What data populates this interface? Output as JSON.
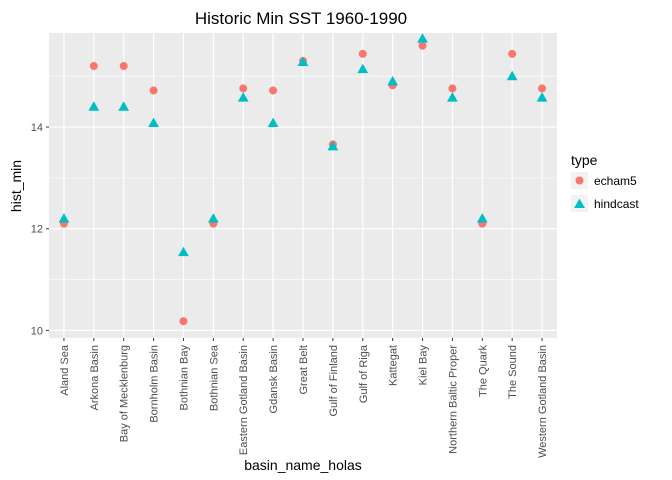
{
  "chart_data": {
    "type": "scatter",
    "title": "Historic Min SST 1960-1990",
    "xlabel": "basin_name_holas",
    "ylabel": "hist_min",
    "ylim": [
      9.85,
      15.85
    ],
    "yticks": [
      10,
      12,
      14
    ],
    "grid": true,
    "legend_position": "right",
    "legend_title": "type",
    "categories": [
      "Aland Sea",
      "Arkona Basin",
      "Bay of Mecklenburg",
      "Bornholm Basin",
      "Bothnian Bay",
      "Bothnian Sea",
      "Eastern Gotland Basin",
      "Gdansk Basin",
      "Great Belt",
      "Gulf of Finland",
      "Gulf of Riga",
      "Kattegat",
      "Kiel Bay",
      "Northern Baltic Proper",
      "The Quark",
      "The Sound",
      "Western Gotland Basin"
    ],
    "series": [
      {
        "name": "echam5",
        "marker": "circle",
        "color": "#F8766D",
        "values": [
          12.1,
          15.2,
          15.2,
          14.72,
          10.18,
          12.1,
          14.76,
          14.72,
          15.3,
          13.66,
          15.44,
          14.82,
          15.6,
          14.76,
          12.1,
          15.44,
          14.76
        ]
      },
      {
        "name": "hindcast",
        "marker": "triangle",
        "color": "#00BFC4",
        "values": [
          12.2,
          14.4,
          14.4,
          14.08,
          11.54,
          12.2,
          14.58,
          14.08,
          15.28,
          13.62,
          15.14,
          14.9,
          15.74,
          14.58,
          12.2,
          15.0,
          14.58
        ]
      }
    ]
  }
}
